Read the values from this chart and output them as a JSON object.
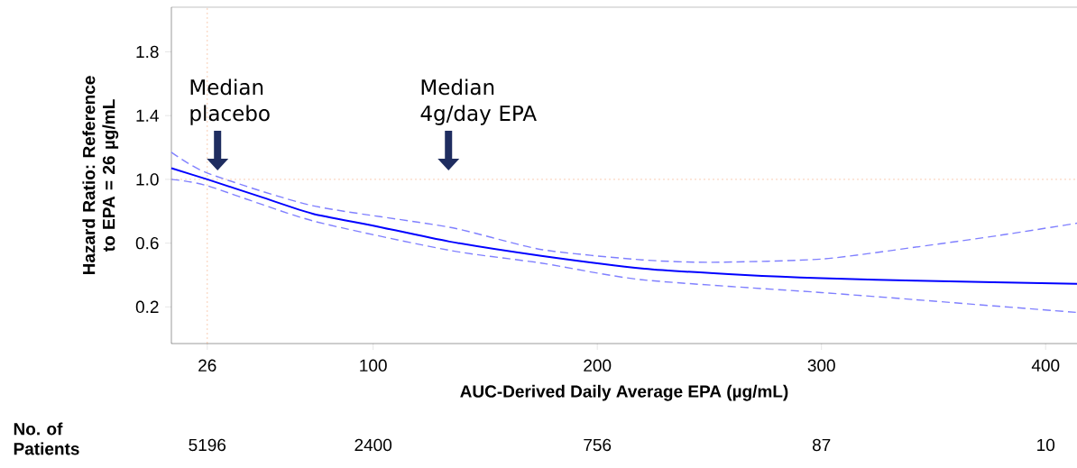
{
  "chart_data": {
    "type": "line",
    "xlabel": "AUC-Derived Daily Average EPA (µg/mL)",
    "ylabel": "Hazard Ratio: Reference to EPA = 26 µg/mL",
    "xlim": [
      10,
      414
    ],
    "xticks": [
      26,
      100,
      200,
      300,
      400
    ],
    "ylim": [
      -0.03,
      2.08
    ],
    "yticks": [
      0.2,
      0.6,
      {
        "value": 1.0,
        "label": "1.0"
      },
      1.4,
      1.8
    ],
    "series": [
      {
        "color": "#0000ff",
        "line_style": "solid",
        "x": [
          10,
          26,
          50,
          73,
          100,
          134,
          175,
          221,
          266,
          300,
          342,
          414
        ],
        "values": [
          1.07,
          1.0,
          0.89,
          0.785,
          0.71,
          0.61,
          0.52,
          0.44,
          0.4,
          0.38,
          0.365,
          0.345
        ]
      },
      {
        "color": "#8080ff",
        "line_style": "dashed",
        "x": [
          10,
          26,
          73,
          134,
          175,
          220,
          251,
          300,
          342,
          380,
          414
        ],
        "values": [
          1.17,
          1.04,
          0.835,
          0.7,
          0.56,
          0.495,
          0.48,
          0.5,
          0.575,
          0.65,
          0.725
        ]
      },
      {
        "color": "#8080ff",
        "line_style": "dashed",
        "x": [
          10,
          26,
          73,
          134,
          175,
          220,
          300,
          342,
          414
        ],
        "values": [
          1.0,
          0.96,
          0.74,
          0.555,
          0.475,
          0.37,
          0.29,
          0.245,
          0.165
        ]
      }
    ],
    "ref_lines": [
      {
        "axis": "y",
        "value": 1.0,
        "color": "#f08040",
        "line_style": "dotted"
      },
      {
        "axis": "x",
        "value": 26,
        "color": "#f08040",
        "line_style": "dotted"
      }
    ],
    "annotations": [
      "Median placebo",
      "Median 4g/day EPA",
      "No. of Patients",
      "5196",
      "2400",
      "756",
      "87",
      "10"
    ],
    "grid": false
  }
}
